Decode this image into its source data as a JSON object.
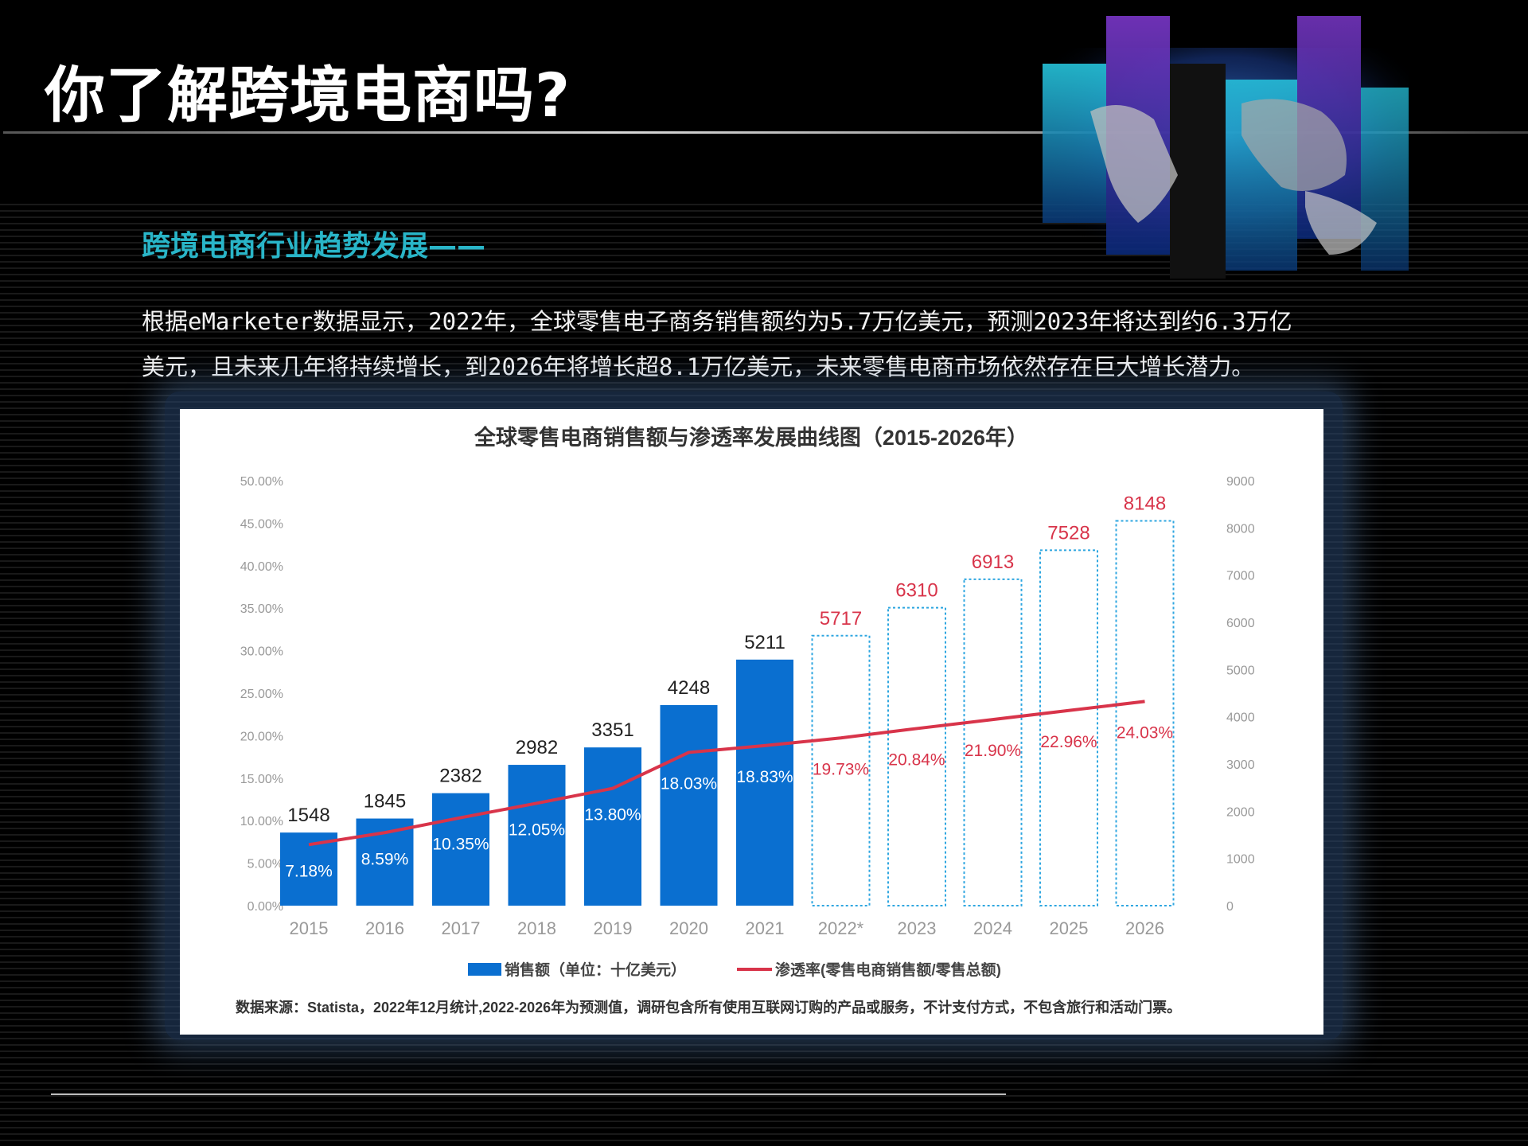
{
  "page": {
    "title": "你了解跨境电商吗?",
    "subtitle": "跨境电商行业趋势发展——",
    "body_line1": "根据eMarketer数据显示，2022年，全球零售电子商务销售额约为5.7万亿美元，预测2023年将达到约6.3万亿",
    "body_line2": "美元，且未来几年将持续增长，到2026年将增长超8.1万亿美元，未来零售电商市场依然存在巨大增长潜力。"
  },
  "colors": {
    "accent_teal": "#29b5c8",
    "bar_actual": "#0a6fd0",
    "bar_forecast_border": "#2ea6e0",
    "line_red": "#d8344a",
    "label_red": "#d8344a"
  },
  "chart_data": {
    "type": "bar",
    "title": "全球零售电商销售额与渗透率发展曲线图（2015-2026年）",
    "categories": [
      "2015",
      "2016",
      "2017",
      "2018",
      "2019",
      "2020",
      "2021",
      "2022*",
      "2023",
      "2024",
      "2025",
      "2026"
    ],
    "series": [
      {
        "name": "销售额（单位：十亿美元）",
        "type": "bar",
        "axis": "right",
        "values": [
          1548,
          1845,
          2382,
          2982,
          3351,
          4248,
          5211,
          5717,
          6310,
          6913,
          7528,
          8148
        ],
        "forecast_from_index": 7
      },
      {
        "name": "渗透率(零售电商销售额/零售总额)",
        "type": "line",
        "axis": "left",
        "values": [
          7.18,
          8.59,
          10.35,
          12.05,
          13.8,
          18.03,
          18.83,
          19.73,
          20.84,
          21.9,
          22.96,
          24.03
        ],
        "labels": [
          "7.18%",
          "8.59%",
          "10.35%",
          "12.05%",
          "13.80%",
          "18.03%",
          "18.83%",
          "19.73%",
          "20.84%",
          "21.90%",
          "22.96%",
          "24.03%"
        ]
      }
    ],
    "bar_labels": [
      "1548",
      "1845",
      "2382",
      "2982",
      "3351",
      "4248",
      "5211",
      "5717",
      "6310",
      "6913",
      "7528",
      "8148"
    ],
    "left_axis": {
      "ylim": [
        0,
        50
      ],
      "ticks": [
        "0.00%",
        "5.00%",
        "10.00%",
        "15.00%",
        "20.00%",
        "25.00%",
        "30.00%",
        "35.00%",
        "40.00%",
        "45.00%",
        "50.00%"
      ]
    },
    "right_axis": {
      "ylim": [
        0,
        9000
      ],
      "ticks": [
        "0",
        "1000",
        "2000",
        "3000",
        "4000",
        "5000",
        "6000",
        "7000",
        "8000",
        "9000"
      ]
    },
    "legend": {
      "position": "bottom",
      "bar_label": "销售额（单位：十亿美元）",
      "line_label": "渗透率(零售电商销售额/零售总额)"
    },
    "source_note": "数据来源：Statista，2022年12月统计,2022-2026年为预测值，调研包含所有使用互联网订购的产品或服务，不计支付方式，不包含旅行和活动门票。",
    "grid": false
  }
}
